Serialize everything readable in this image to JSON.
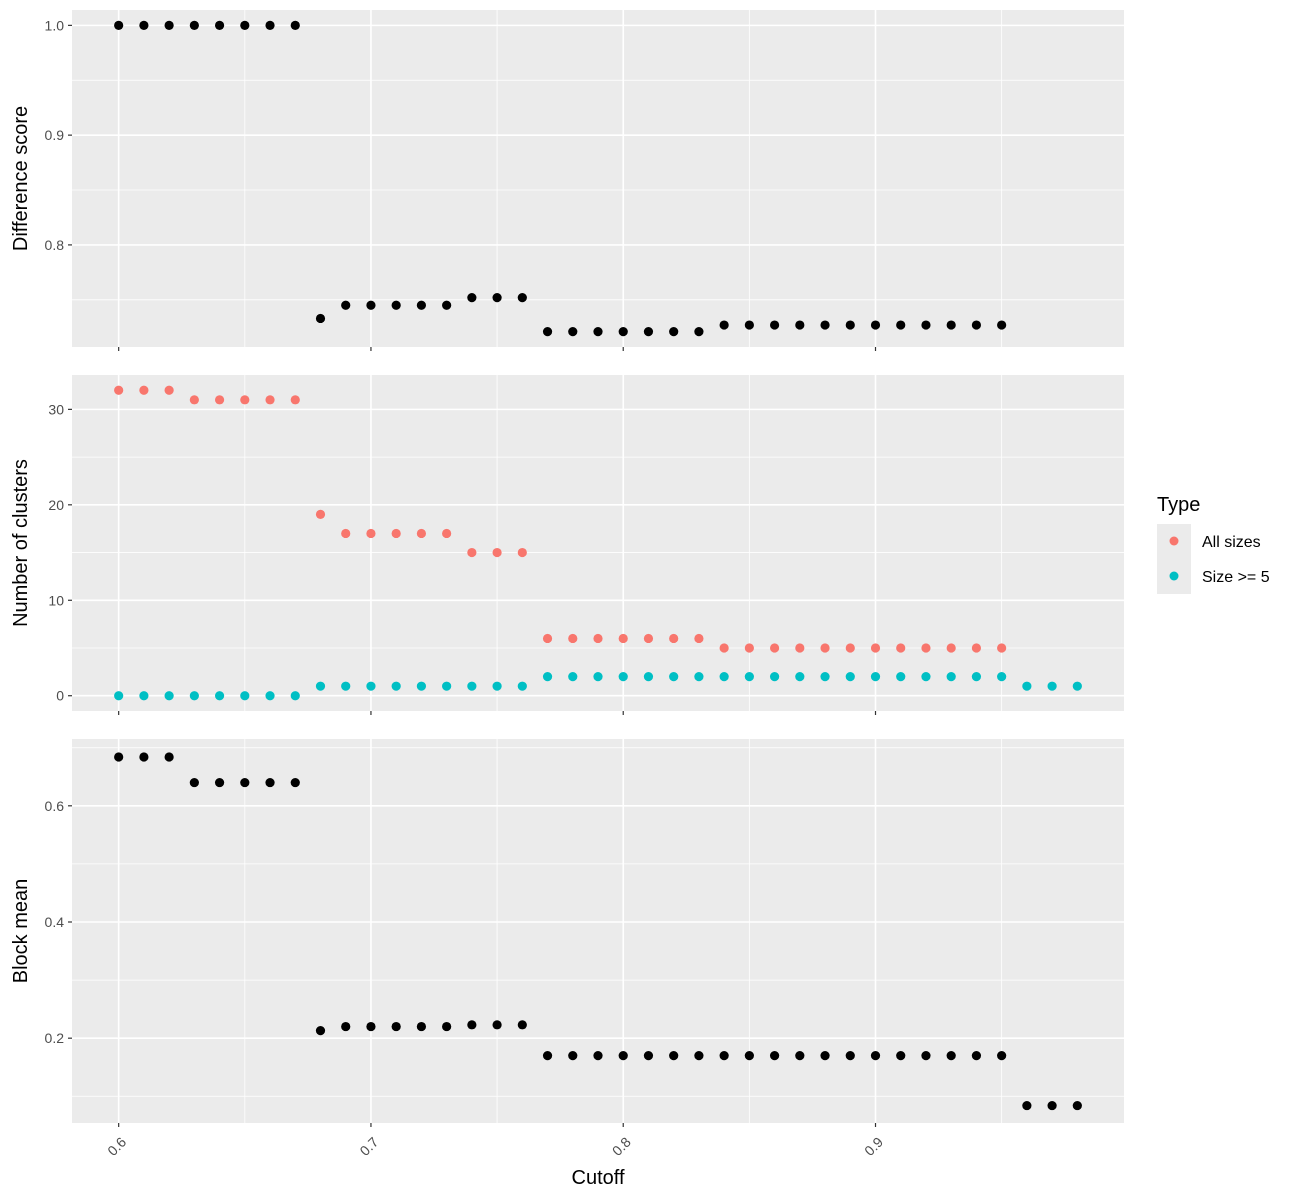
{
  "chart_data": {
    "type": "scatter",
    "x_label": "Cutoff",
    "x_range": [
      0.5815,
      0.9985
    ],
    "x_ticks": [
      "0.6",
      "0.7",
      "0.8",
      "0.9"
    ],
    "x_tick_values": [
      0.6,
      0.7,
      0.8,
      0.9
    ],
    "x_tick_rotation": "45deg",
    "grid": true,
    "legend": {
      "title": "Type",
      "placement": "right",
      "items": [
        {
          "name": "All sizes",
          "color": "#F8766D"
        },
        {
          "name": "Size >= 5",
          "color": "#00BFC4"
        }
      ]
    },
    "panels": [
      {
        "ylabel": "Difference score",
        "ylim": [
          0.707,
          1.014
        ],
        "y_ticks": [
          "0.8",
          "0.9",
          "1.0"
        ],
        "y_tick_values": [
          0.8,
          0.9,
          1.0
        ],
        "series": [
          {
            "color": "#000000",
            "x": [
              0.6,
              0.61,
              0.62,
              0.63,
              0.64,
              0.65,
              0.66,
              0.67,
              0.68,
              0.69,
              0.7,
              0.71,
              0.72,
              0.73,
              0.74,
              0.75,
              0.76,
              0.77,
              0.78,
              0.79,
              0.8,
              0.81,
              0.82,
              0.83,
              0.84,
              0.85,
              0.86,
              0.87,
              0.88,
              0.89,
              0.9,
              0.91,
              0.92,
              0.93,
              0.94,
              0.95
            ],
            "y": [
              1.0,
              1.0,
              1.0,
              1.0,
              1.0,
              1.0,
              1.0,
              1.0,
              0.733,
              0.745,
              0.745,
              0.745,
              0.745,
              0.745,
              0.752,
              0.752,
              0.752,
              0.721,
              0.721,
              0.721,
              0.721,
              0.721,
              0.721,
              0.721,
              0.727,
              0.727,
              0.727,
              0.727,
              0.727,
              0.727,
              0.727,
              0.727,
              0.727,
              0.727,
              0.727,
              0.727
            ]
          }
        ]
      },
      {
        "ylabel": "Number of clusters",
        "ylim": [
          -1.6,
          33.6
        ],
        "y_ticks": [
          "0",
          "10",
          "20",
          "30"
        ],
        "y_tick_values": [
          0,
          10,
          20,
          30
        ],
        "series": [
          {
            "name": "All sizes",
            "color": "#F8766D",
            "x": [
              0.6,
              0.61,
              0.62,
              0.63,
              0.64,
              0.65,
              0.66,
              0.67,
              0.68,
              0.69,
              0.7,
              0.71,
              0.72,
              0.73,
              0.74,
              0.75,
              0.76,
              0.77,
              0.78,
              0.79,
              0.8,
              0.81,
              0.82,
              0.83,
              0.84,
              0.85,
              0.86,
              0.87,
              0.88,
              0.89,
              0.9,
              0.91,
              0.92,
              0.93,
              0.94,
              0.95
            ],
            "y": [
              32,
              32,
              32,
              31,
              31,
              31,
              31,
              31,
              19,
              17,
              17,
              17,
              17,
              17,
              15,
              15,
              15,
              6,
              6,
              6,
              6,
              6,
              6,
              6,
              5,
              5,
              5,
              5,
              5,
              5,
              5,
              5,
              5,
              5,
              5,
              5
            ]
          },
          {
            "name": "Size >= 5",
            "color": "#00BFC4",
            "x": [
              0.6,
              0.61,
              0.62,
              0.63,
              0.64,
              0.65,
              0.66,
              0.67,
              0.68,
              0.69,
              0.7,
              0.71,
              0.72,
              0.73,
              0.74,
              0.75,
              0.76,
              0.77,
              0.78,
              0.79,
              0.8,
              0.81,
              0.82,
              0.83,
              0.84,
              0.85,
              0.86,
              0.87,
              0.88,
              0.89,
              0.9,
              0.91,
              0.92,
              0.93,
              0.94,
              0.95,
              0.96,
              0.97,
              0.98
            ],
            "y": [
              0,
              0,
              0,
              0,
              0,
              0,
              0,
              0,
              1,
              1,
              1,
              1,
              1,
              1,
              1,
              1,
              1,
              2,
              2,
              2,
              2,
              2,
              2,
              2,
              2,
              2,
              2,
              2,
              2,
              2,
              2,
              2,
              2,
              2,
              2,
              2,
              1,
              1,
              1
            ]
          }
        ]
      },
      {
        "ylabel": "Block mean",
        "ylim": [
          0.054,
          0.715
        ],
        "y_ticks": [
          "0.2",
          "0.4",
          "0.6"
        ],
        "y_tick_values": [
          0.2,
          0.4,
          0.6
        ],
        "series": [
          {
            "color": "#000000",
            "x": [
              0.6,
              0.61,
              0.62,
              0.63,
              0.64,
              0.65,
              0.66,
              0.67,
              0.68,
              0.69,
              0.7,
              0.71,
              0.72,
              0.73,
              0.74,
              0.75,
              0.76,
              0.77,
              0.78,
              0.79,
              0.8,
              0.81,
              0.82,
              0.83,
              0.84,
              0.85,
              0.86,
              0.87,
              0.88,
              0.89,
              0.9,
              0.91,
              0.92,
              0.93,
              0.94,
              0.95,
              0.96,
              0.97,
              0.98
            ],
            "y": [
              0.684,
              0.684,
              0.684,
              0.64,
              0.64,
              0.64,
              0.64,
              0.64,
              0.213,
              0.22,
              0.22,
              0.22,
              0.22,
              0.22,
              0.223,
              0.223,
              0.223,
              0.17,
              0.17,
              0.17,
              0.17,
              0.17,
              0.17,
              0.17,
              0.17,
              0.17,
              0.17,
              0.17,
              0.17,
              0.17,
              0.17,
              0.17,
              0.17,
              0.17,
              0.17,
              0.17,
              0.084,
              0.084,
              0.084
            ]
          }
        ]
      }
    ]
  }
}
